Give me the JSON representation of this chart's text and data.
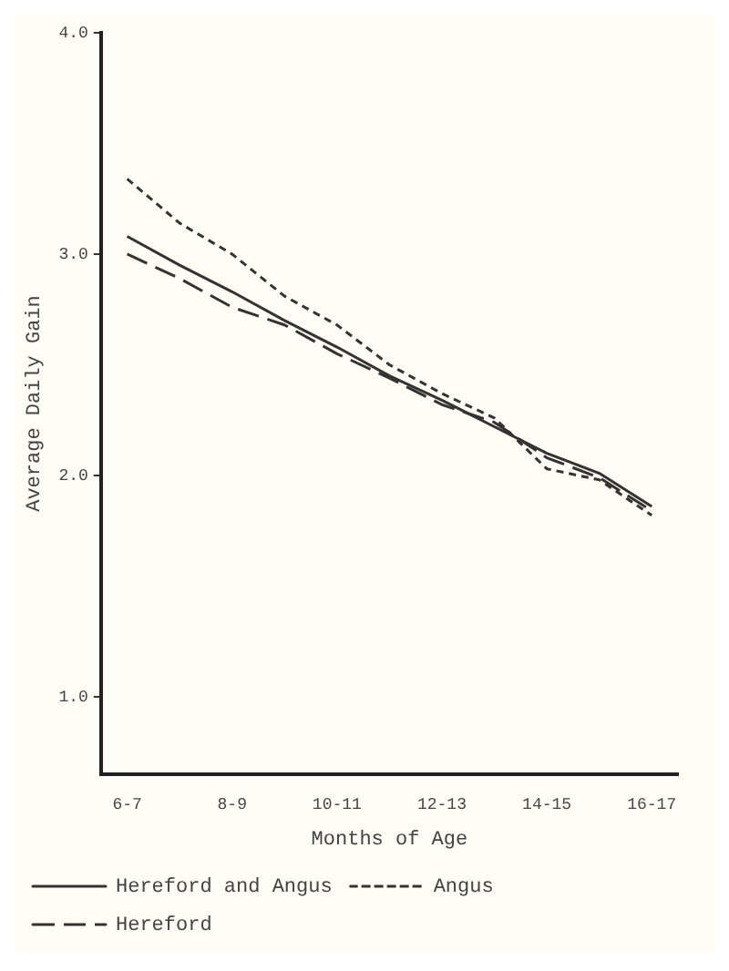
{
  "chart_data": {
    "type": "line",
    "xlabel": "Months of Age",
    "ylabel": "Average Daily Gain",
    "categories": [
      "6-7",
      null,
      "8-9",
      null,
      "10-11",
      null,
      "12-13",
      null,
      "14-15",
      null,
      "16-17"
    ],
    "series": [
      {
        "name": "Hereford and Angus",
        "color": "#333333",
        "line_style": "solid",
        "values": [
          3.08,
          2.95,
          2.83,
          2.7,
          2.58,
          2.45,
          2.34,
          2.22,
          2.1,
          2.01,
          1.86
        ]
      },
      {
        "name": "Angus",
        "color": "#333333",
        "line_style": "dotted",
        "values": [
          3.34,
          3.14,
          3.0,
          2.81,
          2.68,
          2.5,
          2.37,
          2.26,
          2.03,
          1.98,
          1.82
        ]
      },
      {
        "name": "Hereford",
        "color": "#333333",
        "line_style": "dashed",
        "values": [
          3.0,
          2.89,
          2.76,
          2.68,
          2.55,
          2.44,
          2.32,
          2.24,
          2.08,
          1.99,
          1.84
        ]
      }
    ],
    "ylim": [
      0.65,
      4.0
    ],
    "yticks": [
      {
        "value": 1.0,
        "label": "1.0"
      },
      {
        "value": 2.0,
        "label": "2.0"
      },
      {
        "value": 3.0,
        "label": "3.0"
      },
      {
        "value": 4.0,
        "label": "4.0"
      }
    ],
    "grid": false,
    "legend": "bottom left",
    "marker": "none"
  }
}
